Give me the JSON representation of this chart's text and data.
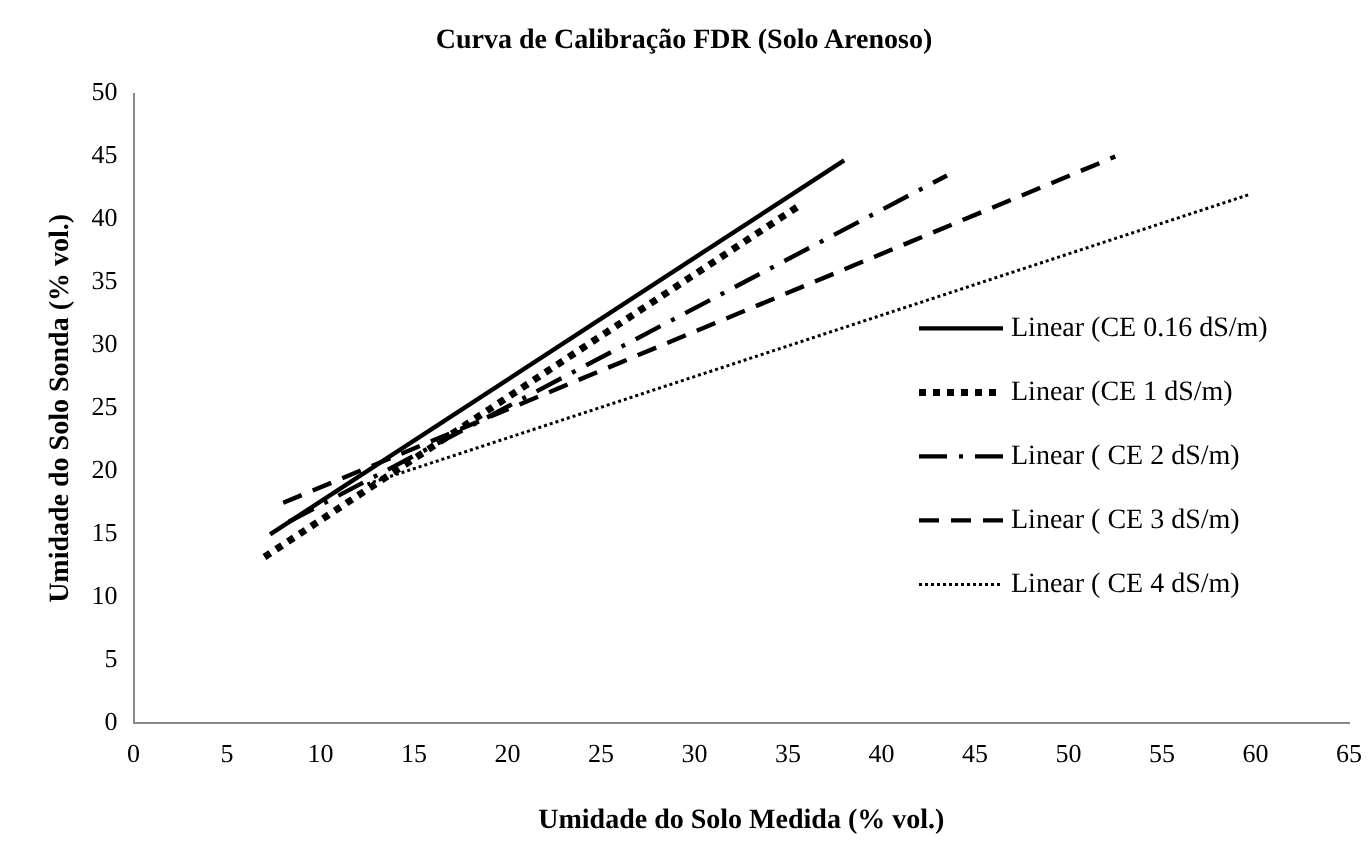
{
  "chart_data": {
    "type": "line",
    "title": "Curva de Calibração FDR (Solo Arenoso)",
    "xlabel": "Umidade do Solo Medida (% vol.)",
    "ylabel": "Umidade do Solo Sonda (% vol.)",
    "xlim": [
      0,
      65
    ],
    "xticks": [
      0,
      5,
      10,
      15,
      20,
      25,
      30,
      35,
      40,
      45,
      50,
      55,
      60,
      65
    ],
    "ylim": [
      0,
      50
    ],
    "yticks": [
      0,
      5,
      10,
      15,
      20,
      25,
      30,
      35,
      40,
      45,
      50
    ],
    "grid": false,
    "legend": "right",
    "marker": "none",
    "series": [
      {
        "name": "Linear (CE 0.16 dS/m)",
        "color": "#000000",
        "line_style": "solid",
        "x": [
          7.3,
          38
        ],
        "values": [
          15,
          44.7
        ]
      },
      {
        "name": "Linear (CE 1 dS/m)",
        "color": "#000000",
        "line_style": "dotted",
        "x": [
          7,
          35.5
        ],
        "values": [
          13.2,
          41
        ]
      },
      {
        "name": "Linear ( CE 2 dS/m)",
        "color": "#000000",
        "line_style": "dashdot",
        "x": [
          8.3,
          43.5
        ],
        "values": [
          16,
          43.5
        ]
      },
      {
        "name": "Linear ( CE 3 dS/m)",
        "color": "#000000",
        "line_style": "dashed",
        "x": [
          8,
          52.5
        ],
        "values": [
          17.5,
          45
        ]
      },
      {
        "name": "Linear ( CE 4 dS/m)",
        "color": "#000000",
        "line_style": "dotted",
        "x": [
          12.5,
          59.7
        ],
        "values": [
          19,
          42
        ]
      }
    ]
  }
}
